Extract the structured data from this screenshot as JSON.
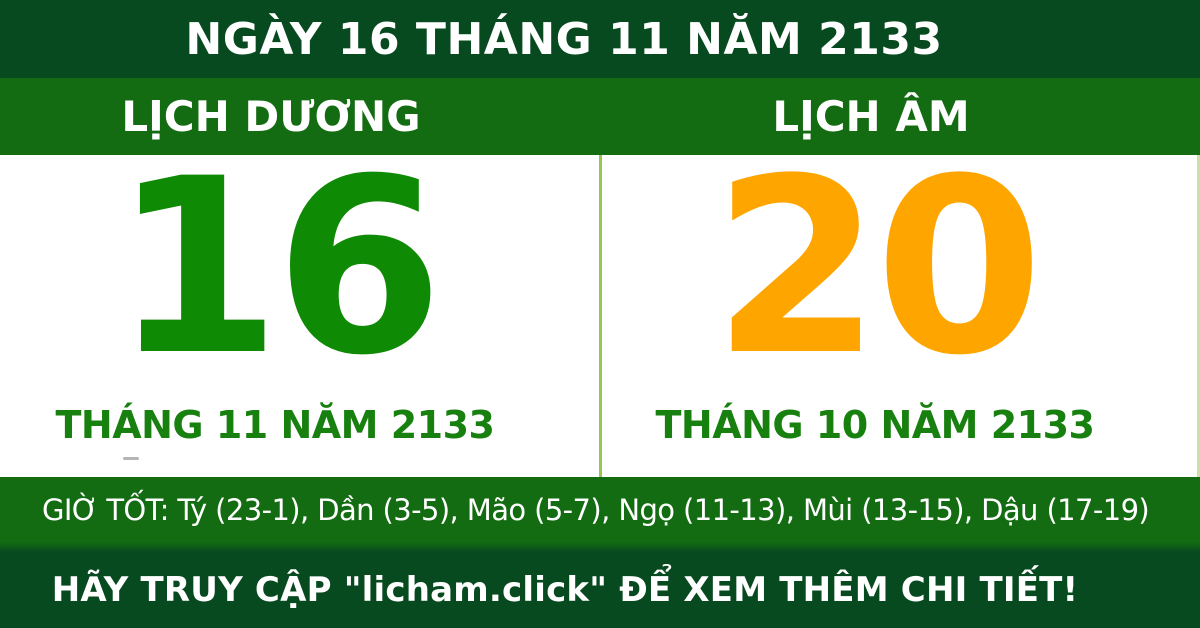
{
  "colors": {
    "dark_green": "#084a20",
    "band_green": "#136c11",
    "solar_day_green": "#0e8a04",
    "lunar_day_orange": "#ffa500",
    "month_green": "#17800f",
    "divider_green": "#94c952",
    "panel_white": "#ffffff"
  },
  "header": {
    "title": "NGÀY 16 THÁNG 11 NĂM 2133"
  },
  "calendar": {
    "solar": {
      "label": "LỊCH DƯƠNG",
      "day": "16",
      "month": "THÁNG 11 NĂM 2133"
    },
    "lunar": {
      "label": "LỊCH ÂM",
      "day": "20",
      "month": "THÁNG 10 NĂM 2133"
    }
  },
  "good_hours": {
    "text": "GIỜ TỐT: Tý (23-1), Dần (3-5), Mão (5-7), Ngọ (11-13), Mùi (13-15), Dậu (17-19)"
  },
  "footer": {
    "text": "HÃY TRUY CẬP \"licham.click\" ĐỂ XEM THÊM CHI TIẾT!"
  }
}
